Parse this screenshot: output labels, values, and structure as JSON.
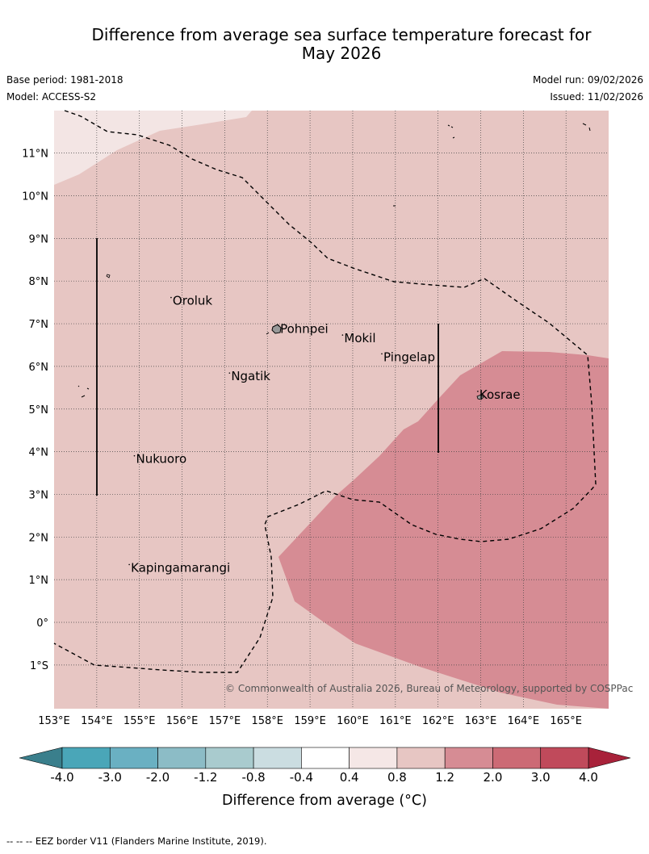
{
  "title_line1": "Difference from average sea surface temperature forecast for",
  "title_line2": "May 2026",
  "base_period": "Base period: 1981-2018",
  "model": "Model: ACCESS-S2",
  "model_run": "Model run: 09/02/2026",
  "issued": "Issued: 11/02/2026",
  "copyright": "© Commonwealth of Australia 2026, Bureau of Meteorology, supported by COSPPac",
  "lat_labels": [
    "11°N",
    "10°N",
    "9°N",
    "8°N",
    "7°N",
    "6°N",
    "5°N",
    "4°N",
    "3°N",
    "2°N",
    "1°N",
    "0°",
    "1°S"
  ],
  "lon_labels": [
    "153°E",
    "154°E",
    "155°E",
    "156°E",
    "157°E",
    "158°E",
    "159°E",
    "160°E",
    "161°E",
    "162°E",
    "163°E",
    "164°E",
    "165°E"
  ],
  "places": [
    {
      "name": "Oroluk",
      "lon": 155.78,
      "lat": 7.52
    },
    {
      "name": "Pohnpei",
      "lon": 158.3,
      "lat": 6.86
    },
    {
      "name": "Mokil",
      "lon": 159.8,
      "lat": 6.64
    },
    {
      "name": "Pingelap",
      "lon": 160.72,
      "lat": 6.2
    },
    {
      "name": "Ngatik",
      "lon": 157.15,
      "lat": 5.75
    },
    {
      "name": "Kosrae",
      "lon": 162.97,
      "lat": 5.32
    },
    {
      "name": "Nukuoro",
      "lon": 154.92,
      "lat": 3.81
    },
    {
      "name": "Kapingamarangi",
      "lon": 154.8,
      "lat": 1.26
    }
  ],
  "colorbar": {
    "ticks": [
      "-4.0",
      "-3.0",
      "-2.0",
      "-1.2",
      "-0.8",
      "-0.4",
      "0.4",
      "0.8",
      "1.2",
      "2.0",
      "3.0",
      "4.0"
    ],
    "colors": [
      "#4aa6b8",
      "#6ab0c2",
      "#8cbcc6",
      "#a9cbce",
      "#cbdde1",
      "#ffffff",
      "#f5e7e6",
      "#e7c6c3",
      "#d68c94",
      "#cc6a75",
      "#c04a5b"
    ],
    "under_color": "#3a7f8c",
    "over_color": "#a8223a",
    "label": "Difference from average (°C)"
  },
  "legend_footer": "-- -- -- EEZ border V11 (Flanders Marine Institute, 2019).",
  "map_colors": {
    "light": "#f3e5e4",
    "mid": "#e7c6c3",
    "high": "#d68c94"
  }
}
